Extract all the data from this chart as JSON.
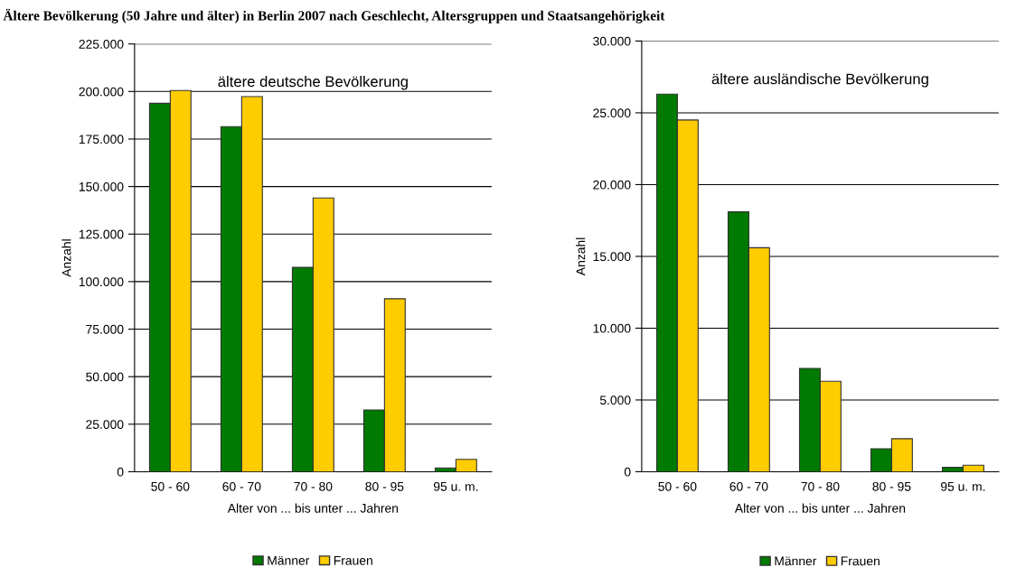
{
  "chart_data": [
    {
      "type": "bar",
      "title": "Ältere Bevölkerung (50 Jahre und älter) in Berlin 2007 nach Geschlecht, Altersgruppen und Staatsangehörigkeit",
      "xlabel": "Alter von ... bis unter ... Jahren",
      "ylabel": "Anzahl",
      "annotations": [
        "ältere deutsche Bevölkerung"
      ],
      "categories": [
        "50 - 60",
        "60 - 70",
        "70 - 80",
        "80 - 95",
        "95 u. m."
      ],
      "series": [
        {
          "name": "Männer",
          "color": "#007a00",
          "values": [
            193800,
            181500,
            107500,
            32500,
            2000
          ]
        },
        {
          "name": "Frauen",
          "color": "#ffcc00",
          "values": [
            200500,
            197300,
            144000,
            91000,
            6500
          ]
        }
      ],
      "ylim": [
        0,
        225000
      ],
      "yticks": [
        0,
        {
          "value": 25000,
          "label": "25.000"
        },
        {
          "value": 50000,
          "label": "50.000"
        },
        {
          "value": 75000,
          "label": "75.000"
        },
        {
          "value": 100000,
          "label": "100.000"
        },
        {
          "value": 125000,
          "label": "125.000"
        },
        {
          "value": 150000,
          "label": "150.000"
        },
        {
          "value": 175000,
          "label": "175.000"
        },
        {
          "value": 200000,
          "label": "200.000"
        },
        {
          "value": 225000,
          "label": "225.000"
        }
      ],
      "grid": "y",
      "legend": "bottom"
    },
    {
      "type": "bar",
      "xlabel": "Alter von ... bis unter ... Jahren",
      "ylabel": "Anzahl",
      "annotations": [
        "ältere ausländische Bevölkerung"
      ],
      "categories": [
        "50 - 60",
        "60 - 70",
        "70 - 80",
        "80 - 95",
        "95 u. m."
      ],
      "series": [
        {
          "name": "Männer",
          "color": "#007a00",
          "values": [
            26300,
            18100,
            7200,
            1600,
            300
          ]
        },
        {
          "name": "Frauen",
          "color": "#ffcc00",
          "values": [
            24500,
            15600,
            6300,
            2300,
            450
          ]
        }
      ],
      "ylim": [
        0,
        30000
      ],
      "yticks": [
        0,
        {
          "value": 5000,
          "label": "5.000"
        },
        {
          "value": 10000,
          "label": "10.000"
        },
        {
          "value": 15000,
          "label": "15.000"
        },
        {
          "value": 20000,
          "label": "20.000"
        },
        {
          "value": 25000,
          "label": "25.000"
        },
        {
          "value": 30000,
          "label": "30.000"
        }
      ],
      "grid": "y",
      "legend": "bottom"
    }
  ]
}
